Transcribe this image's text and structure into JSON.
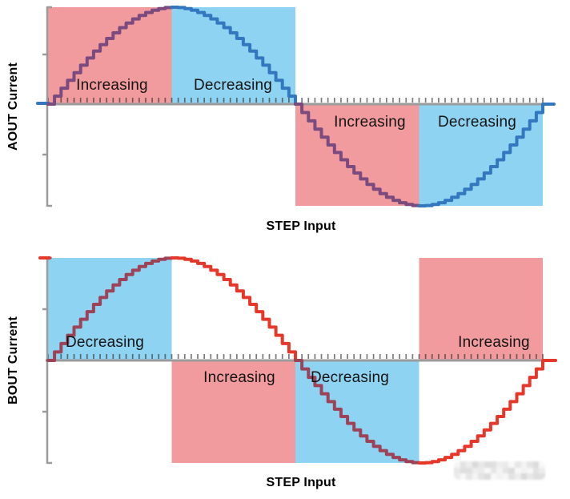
{
  "charts": [
    {
      "y_axis_title": "AOUT Current",
      "x_axis_title": "STEP Input",
      "regions": [
        {
          "label": "Increasing",
          "fill": "red",
          "half": "above"
        },
        {
          "label": "Decreasing",
          "fill": "blue",
          "half": "above"
        },
        {
          "label": "Increasing",
          "fill": "red",
          "half": "below"
        },
        {
          "label": "Decreasing",
          "fill": "blue",
          "half": "below"
        }
      ],
      "wave_segment_colors": [
        "purple",
        "blue",
        "purple",
        "blue"
      ]
    },
    {
      "y_axis_title": "BOUT Current",
      "x_axis_title": "STEP Input",
      "regions": [
        {
          "label": "Decreasing",
          "fill": "blue",
          "half": "above"
        },
        {
          "label": "Increasing",
          "fill": "red",
          "half": "below"
        },
        {
          "label": "Decreasing",
          "fill": "blue",
          "half": "below"
        },
        {
          "label": "Increasing",
          "fill": "red",
          "half": "above"
        }
      ],
      "wave_segment_colors": [
        "maroon",
        "red",
        "maroon",
        "red"
      ]
    }
  ],
  "chart_data": [
    {
      "type": "line",
      "waveform": "stepped-sine",
      "xlabel": "STEP Input",
      "ylabel": "AOUT Current",
      "steps_per_cycle": 76,
      "x_range_steps": [
        0,
        76
      ],
      "y_normalized_formula": "sin(2*pi*step/76)",
      "ylim": [
        -1,
        1
      ],
      "grid": false,
      "legend": "none",
      "axis_tick_per_step": true,
      "annotations": [
        {
          "label": "Increasing",
          "cycle_fraction": [
            0.0,
            0.25
          ],
          "shade": "red",
          "current_sign": "positive"
        },
        {
          "label": "Decreasing",
          "cycle_fraction": [
            0.25,
            0.5
          ],
          "shade": "blue",
          "current_sign": "positive"
        },
        {
          "label": "Increasing",
          "cycle_fraction": [
            0.5,
            0.75
          ],
          "shade": "red",
          "current_sign": "negative"
        },
        {
          "label": "Decreasing",
          "cycle_fraction": [
            0.75,
            1.0
          ],
          "shade": "blue",
          "current_sign": "negative"
        }
      ]
    },
    {
      "type": "line",
      "waveform": "stepped-cosine",
      "xlabel": "STEP Input",
      "ylabel": "BOUT Current",
      "steps_per_cycle": 76,
      "x_range_steps": [
        0,
        76
      ],
      "y_normalized_formula": "cos(2*pi*step/76)",
      "ylim": [
        -1,
        1
      ],
      "grid": false,
      "legend": "none",
      "axis_tick_per_step": true,
      "annotations": [
        {
          "label": "Decreasing",
          "cycle_fraction": [
            0.0,
            0.25
          ],
          "shade": "blue",
          "current_sign": "positive"
        },
        {
          "label": "Increasing",
          "cycle_fraction": [
            0.25,
            0.5
          ],
          "shade": "red",
          "current_sign": "negative"
        },
        {
          "label": "Decreasing",
          "cycle_fraction": [
            0.5,
            0.75
          ],
          "shade": "blue",
          "current_sign": "negative"
        },
        {
          "label": "Increasing",
          "cycle_fraction": [
            0.75,
            1.0
          ],
          "shade": "red",
          "current_sign": "positive"
        }
      ]
    }
  ],
  "colors": {
    "red_region": "#F29B9E",
    "blue_region": "#8FD3F2",
    "wave_purple": "#7B4A7E",
    "wave_blue": "#3378BE",
    "wave_maroon": "#9D4357",
    "wave_red": "#E6372B",
    "axis_gray": "#9B9B9B",
    "tick": "rgba(40,40,40,0.62)",
    "label_text": "#141414"
  },
  "watermark": {
    "cell_colors": [
      "#f6f6f6",
      "#eeeeee",
      "#f8f8f8",
      "#dedede",
      "#e4e4e4",
      "#d9d9d9",
      "#e6e6e6",
      "#e2e2e2",
      "#ebebeb",
      "#f2f2f2",
      "#e0e0e0",
      "#dcdcdc",
      "#e8e8e8",
      "#f4f4f4",
      "#ededed",
      "#f9f9f9"
    ]
  }
}
